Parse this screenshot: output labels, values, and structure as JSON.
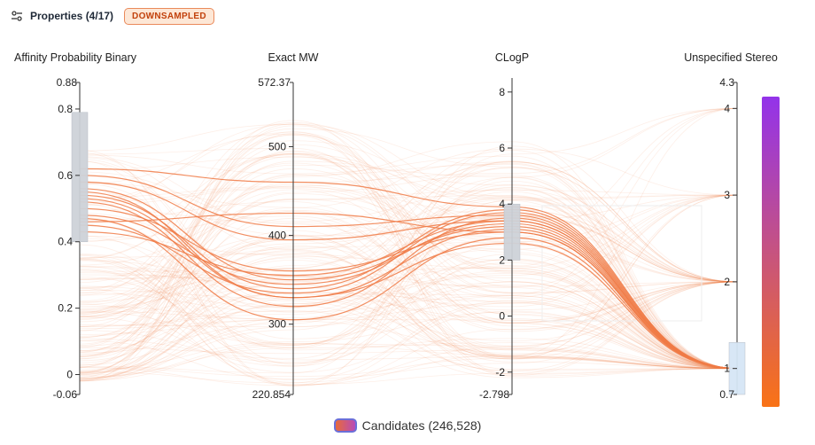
{
  "header": {
    "title": "Properties (4/17)",
    "badge": "DOWNSAMPLED"
  },
  "legend": {
    "label": "Candidates (246,528)"
  },
  "colors": {
    "line": "#f07a45",
    "brush": "#cdd2d8",
    "brush_light": "#d6e6f5",
    "colorbar_top": "#9333ea",
    "colorbar_bottom": "#f97316"
  },
  "chart_data": {
    "type": "parallel-coordinates",
    "axes": [
      {
        "name": "Affinity Probability Binary",
        "min": -0.06,
        "max": 0.88,
        "min_label": "-0.06",
        "max_label": "0.88",
        "ticks": [
          {
            "v": 0,
            "label": "0"
          },
          {
            "v": 0.2,
            "label": "0.2"
          },
          {
            "v": 0.4,
            "label": "0.4"
          },
          {
            "v": 0.6,
            "label": "0.6"
          },
          {
            "v": 0.8,
            "label": "0.8"
          }
        ],
        "brush": [
          0.4,
          0.79
        ]
      },
      {
        "name": "Exact MW",
        "min": 220.854,
        "max": 572.37,
        "min_label": "220.854",
        "max_label": "572.37",
        "ticks": [
          {
            "v": 300,
            "label": "300"
          },
          {
            "v": 400,
            "label": "400"
          },
          {
            "v": 500,
            "label": "500"
          }
        ],
        "brush": null
      },
      {
        "name": "CLogP",
        "min": -2.798,
        "max": 8.5,
        "min_label": "-2.798",
        "max_label": "",
        "ticks": [
          {
            "v": -2,
            "label": "-2"
          },
          {
            "v": 0,
            "label": "0"
          },
          {
            "v": 2,
            "label": "2"
          },
          {
            "v": 4,
            "label": "4"
          },
          {
            "v": 6,
            "label": "6"
          },
          {
            "v": 8,
            "label": "8"
          }
        ],
        "brush": [
          2,
          4
        ]
      },
      {
        "name": "Unspecified Stereo",
        "min": 0.7,
        "max": 4.3,
        "min_label": "0.7",
        "max_label": "4.3",
        "ticks": [
          {
            "v": 1,
            "label": "1"
          },
          {
            "v": 2,
            "label": "2"
          },
          {
            "v": 3,
            "label": "3"
          },
          {
            "v": 4,
            "label": "4"
          }
        ],
        "brush": [
          0.7,
          1.3
        ]
      }
    ],
    "highlighted_series": [
      [
        0.62,
        460,
        3.9,
        1.0
      ],
      [
        0.6,
        410,
        3.6,
        1.0
      ],
      [
        0.58,
        395,
        3.4,
        1.0
      ],
      [
        0.56,
        350,
        3.2,
        1.0
      ],
      [
        0.54,
        340,
        3.8,
        1.0
      ],
      [
        0.53,
        330,
        3.1,
        1.0
      ],
      [
        0.52,
        320,
        3.5,
        1.0
      ],
      [
        0.5,
        360,
        3.0,
        1.0
      ],
      [
        0.48,
        345,
        3.3,
        1.0
      ],
      [
        0.47,
        305,
        2.8,
        1.0
      ],
      [
        0.45,
        335,
        3.7,
        1.0
      ],
      [
        0.46,
        425,
        3.0,
        1.0
      ],
      [
        0.55,
        330,
        2.6,
        1.0
      ],
      [
        0.43,
        355,
        3.4,
        1.0
      ]
    ],
    "background_count": 160
  }
}
